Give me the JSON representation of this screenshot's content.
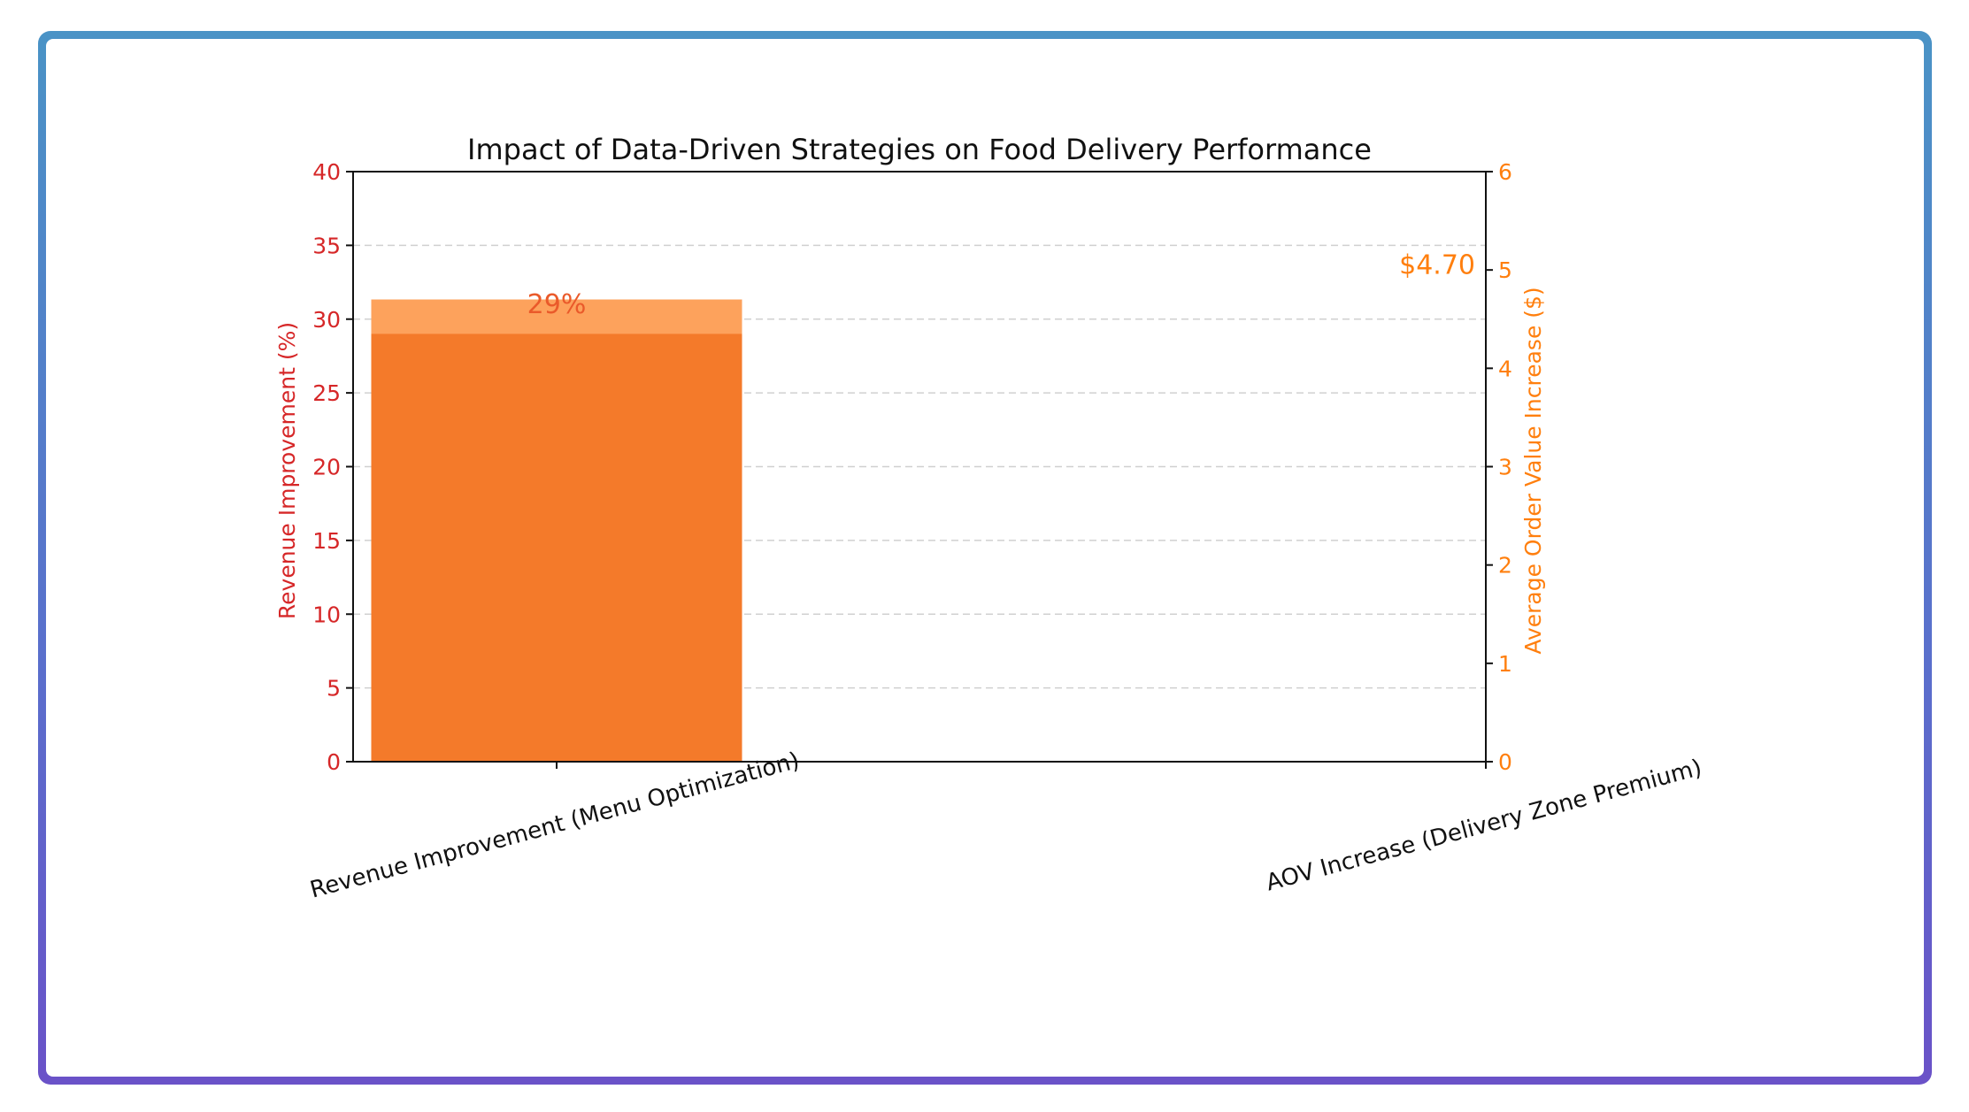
{
  "chart_data": {
    "type": "bar",
    "title": "Impact of Data-Driven Strategies on Food Delivery Performance",
    "categories": [
      "Revenue Improvement (Menu Optimization)",
      "AOV Increase (Delivery Zone Premium)"
    ],
    "series": [
      {
        "axis": "left",
        "category_index": 0,
        "value": 29,
        "label": "29%",
        "color": "#f47a2a"
      },
      {
        "axis": "right",
        "category_index": 0,
        "value": 4.7,
        "label": "$4.70",
        "label_category_index": 1,
        "color": "#fda25c"
      }
    ],
    "ylabel": "Revenue Improvement (%)",
    "ylabel_right": "Average Order Value Increase ($)",
    "ylim": [
      0,
      40
    ],
    "ylim_right": [
      0,
      6
    ],
    "yticks": [
      0,
      5,
      10,
      15,
      20,
      25,
      30,
      35,
      40
    ],
    "yticks_right": [
      0,
      1,
      2,
      3,
      4,
      5,
      6
    ],
    "left_axis_color": "#d62728",
    "right_axis_color": "#ff7f0e",
    "grid": true,
    "grid_style": "dashed"
  }
}
